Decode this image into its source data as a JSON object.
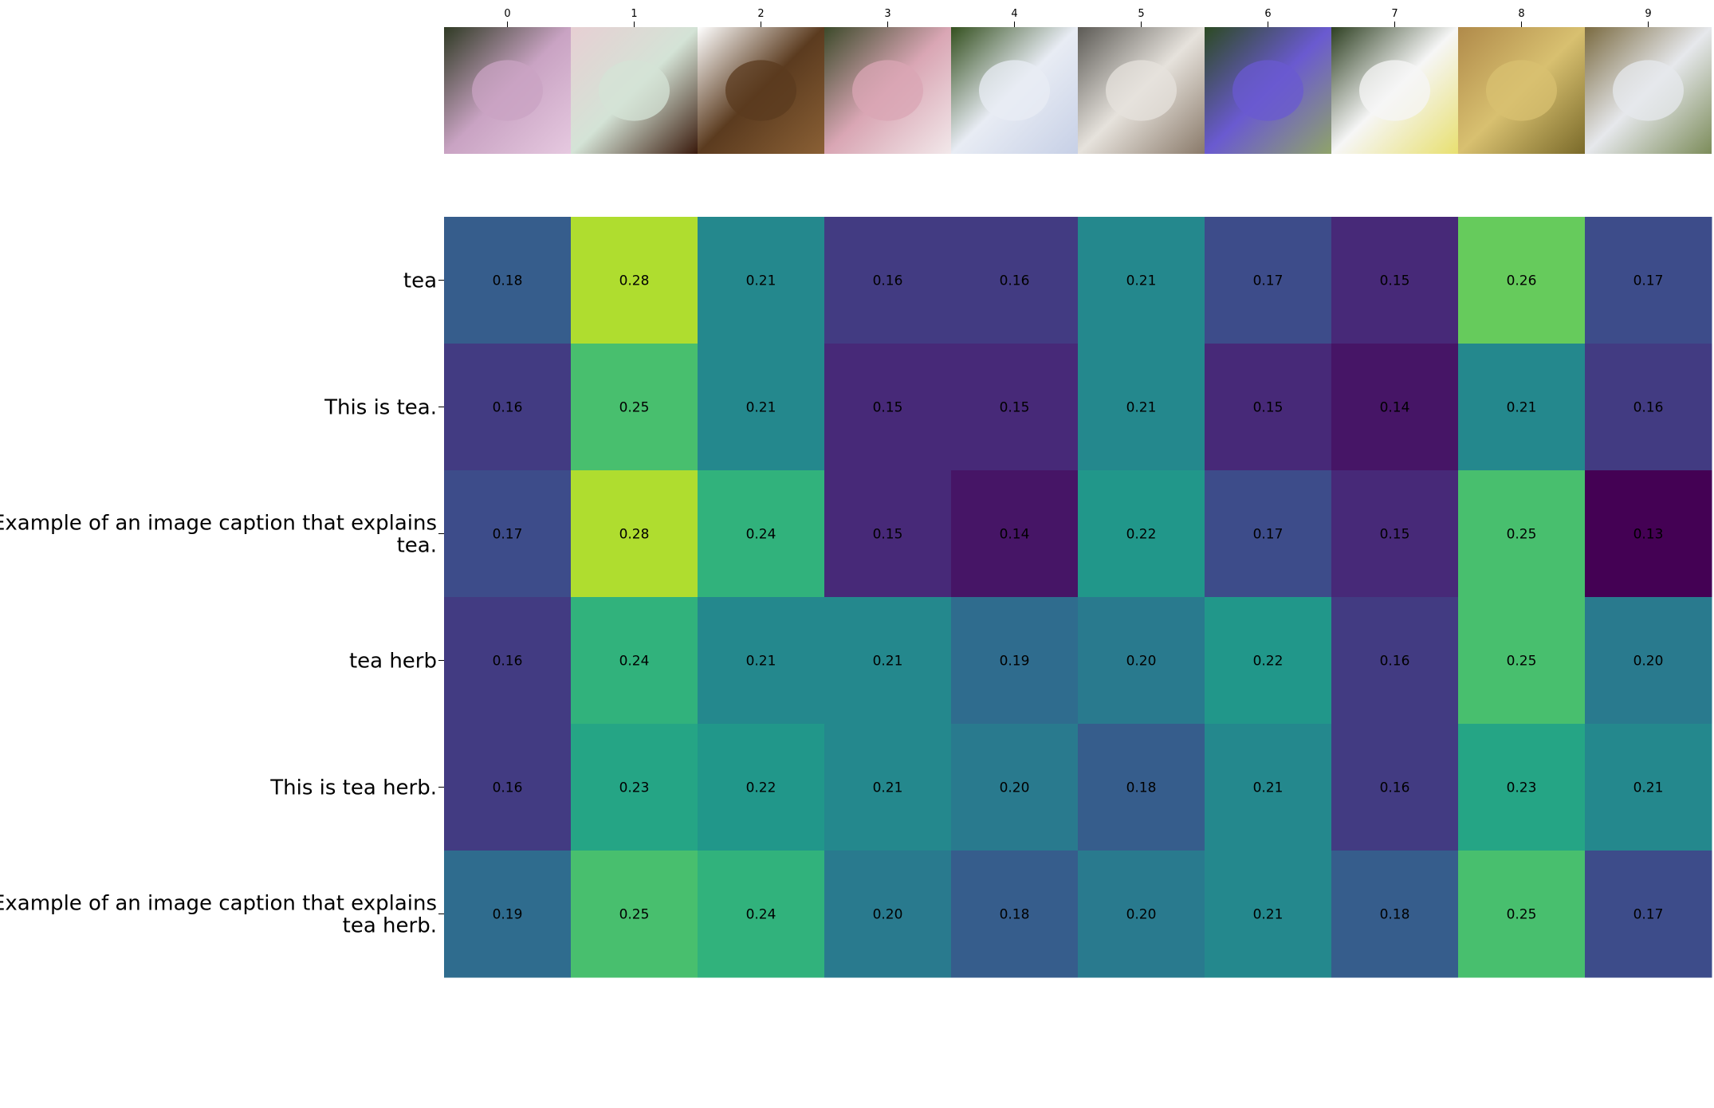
{
  "chart_data": {
    "type": "heatmap",
    "x_tick_labels": [
      "0",
      "1",
      "2",
      "3",
      "4",
      "5",
      "6",
      "7",
      "8",
      "9"
    ],
    "image_thumbnails": [
      {
        "index": 0,
        "subject": "pink flowers",
        "colors": [
          "#2f3a24",
          "#c9a3c3",
          "#e6c9e0"
        ]
      },
      {
        "index": 1,
        "subject": "cup of black tea",
        "colors": [
          "#e7cfd3",
          "#d4e3d6",
          "#3a1a0c"
        ]
      },
      {
        "index": 2,
        "subject": "loose dried tea leaves",
        "colors": [
          "#ffffff",
          "#5b3b1f",
          "#8a6035"
        ]
      },
      {
        "index": 3,
        "subject": "pink and white flower spike",
        "colors": [
          "#3c4a2a",
          "#d9a6b4",
          "#f2e8ea"
        ]
      },
      {
        "index": 4,
        "subject": "white plumbago flowers",
        "colors": [
          "#34501f",
          "#e8ecf4",
          "#c7d0e6"
        ]
      },
      {
        "index": 5,
        "subject": "afternoon tea table",
        "colors": [
          "#5c5a55",
          "#e6e2dc",
          "#8a7a6a"
        ]
      },
      {
        "index": 6,
        "subject": "blue-purple flowers",
        "colors": [
          "#2c4a22",
          "#6a5ad0",
          "#8fa36a"
        ]
      },
      {
        "index": 7,
        "subject": "white chicory flower",
        "colors": [
          "#2e4022",
          "#f6f6f6",
          "#e8e070"
        ]
      },
      {
        "index": 8,
        "subject": "glass mug of green tea",
        "colors": [
          "#b08a4a",
          "#d8c070",
          "#7a6a2a"
        ]
      },
      {
        "index": 9,
        "subject": "dried herb on paper",
        "colors": [
          "#7a6a40",
          "#e6e8ec",
          "#7c8c5a"
        ]
      }
    ],
    "y_tick_labels": [
      [
        "tea"
      ],
      [
        "This is tea."
      ],
      [
        "Example of an image caption that explains",
        "tea."
      ],
      [
        "tea herb"
      ],
      [
        "This is tea herb."
      ],
      [
        "Example of an image caption that explains",
        "tea herb."
      ]
    ],
    "values": [
      [
        0.18,
        0.28,
        0.21,
        0.16,
        0.16,
        0.21,
        0.17,
        0.15,
        0.26,
        0.17
      ],
      [
        0.16,
        0.25,
        0.21,
        0.15,
        0.15,
        0.21,
        0.15,
        0.14,
        0.21,
        0.16
      ],
      [
        0.17,
        0.28,
        0.24,
        0.15,
        0.14,
        0.22,
        0.17,
        0.15,
        0.25,
        0.13
      ],
      [
        0.16,
        0.24,
        0.21,
        0.21,
        0.19,
        0.2,
        0.22,
        0.16,
        0.25,
        0.2
      ],
      [
        0.16,
        0.23,
        0.22,
        0.21,
        0.2,
        0.18,
        0.21,
        0.16,
        0.23,
        0.21
      ],
      [
        0.19,
        0.25,
        0.24,
        0.2,
        0.18,
        0.2,
        0.21,
        0.18,
        0.25,
        0.17
      ]
    ],
    "value_format_decimals": 2,
    "color_range": [
      0.13,
      0.28
    ],
    "colormap": [
      "#440154",
      "#482777",
      "#3e4989",
      "#31688e",
      "#26828e",
      "#1f9e89",
      "#35b779",
      "#6ece58",
      "#b5de2b",
      "#fde725"
    ],
    "grid": false,
    "legend": "none"
  }
}
